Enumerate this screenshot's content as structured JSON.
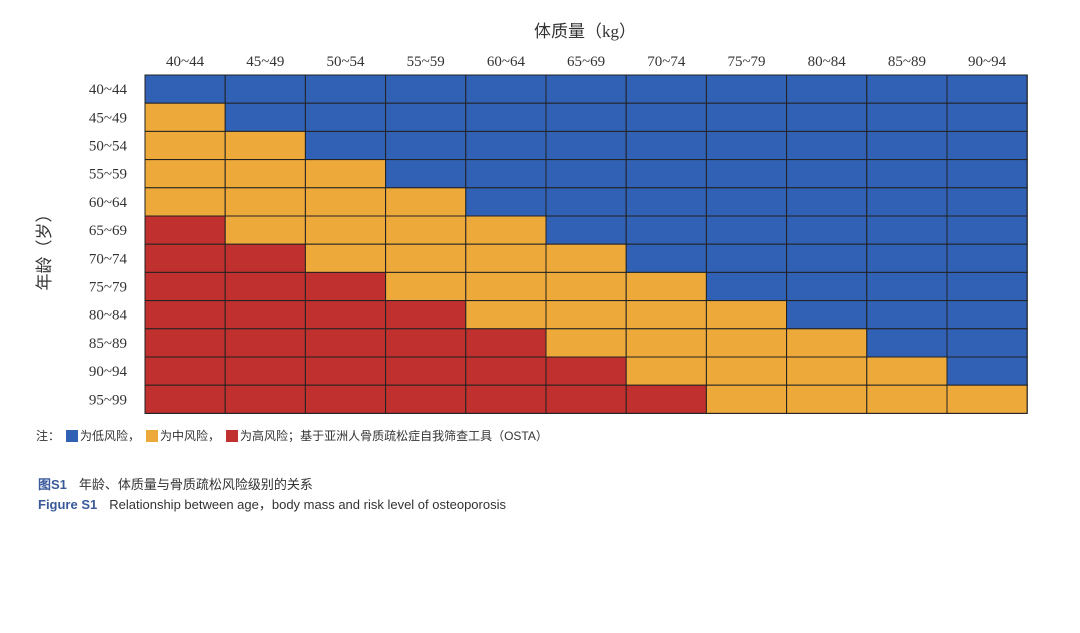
{
  "chart_data": {
    "type": "heatmap",
    "xlabel": "体质量（kg）",
    "ylabel": "年龄（岁）",
    "x_categories": [
      "40~44",
      "45~49",
      "50~54",
      "55~59",
      "60~64",
      "65~69",
      "70~74",
      "75~79",
      "80~84",
      "85~89",
      "90~94"
    ],
    "y_categories": [
      "40~44",
      "45~49",
      "50~54",
      "55~59",
      "60~64",
      "65~69",
      "70~74",
      "75~79",
      "80~84",
      "85~89",
      "90~94",
      "95~99"
    ],
    "levels": [
      "低风险",
      "中风险",
      "高风险"
    ],
    "level_colors": {
      "低风险": "#3061b5",
      "中风险": "#eea93b",
      "高风险": "#c0302e"
    },
    "grid_lines": true,
    "matrix": [
      [
        "低风险",
        "低风险",
        "低风险",
        "低风险",
        "低风险",
        "低风险",
        "低风险",
        "低风险",
        "低风险",
        "低风险",
        "低风险"
      ],
      [
        "中风险",
        "低风险",
        "低风险",
        "低风险",
        "低风险",
        "低风险",
        "低风险",
        "低风险",
        "低风险",
        "低风险",
        "低风险"
      ],
      [
        "中风险",
        "中风险",
        "低风险",
        "低风险",
        "低风险",
        "低风险",
        "低风险",
        "低风险",
        "低风险",
        "低风险",
        "低风险"
      ],
      [
        "中风险",
        "中风险",
        "中风险",
        "低风险",
        "低风险",
        "低风险",
        "低风险",
        "低风险",
        "低风险",
        "低风险",
        "低风险"
      ],
      [
        "中风险",
        "中风险",
        "中风险",
        "中风险",
        "低风险",
        "低风险",
        "低风险",
        "低风险",
        "低风险",
        "低风险",
        "低风险"
      ],
      [
        "高风险",
        "中风险",
        "中风险",
        "中风险",
        "中风险",
        "低风险",
        "低风险",
        "低风险",
        "低风险",
        "低风险",
        "低风险"
      ],
      [
        "高风险",
        "高风险",
        "中风险",
        "中风险",
        "中风险",
        "中风险",
        "低风险",
        "低风险",
        "低风险",
        "低风险",
        "低风险"
      ],
      [
        "高风险",
        "高风险",
        "高风险",
        "中风险",
        "中风险",
        "中风险",
        "中风险",
        "低风险",
        "低风险",
        "低风险",
        "低风险"
      ],
      [
        "高风险",
        "高风险",
        "高风险",
        "高风险",
        "中风险",
        "中风险",
        "中风险",
        "中风险",
        "低风险",
        "低风险",
        "低风险"
      ],
      [
        "高风险",
        "高风险",
        "高风险",
        "高风险",
        "高风险",
        "中风险",
        "中风险",
        "中风险",
        "中风险",
        "低风险",
        "低风险"
      ],
      [
        "高风险",
        "高风险",
        "高风险",
        "高风险",
        "高风险",
        "高风险",
        "中风险",
        "中风险",
        "中风险",
        "中风险",
        "低风险"
      ],
      [
        "高风险",
        "高风险",
        "高风险",
        "高风险",
        "高风险",
        "高风险",
        "高风险",
        "中风险",
        "中风险",
        "中风险",
        "中风险"
      ]
    ]
  },
  "note": {
    "prefix": "注：",
    "items": [
      {
        "label": "为低风险，",
        "color": "#3061b5"
      },
      {
        "label": "为中风险，",
        "color": "#eea93b"
      },
      {
        "label": "为高风险；",
        "color": "#c0302e"
      }
    ],
    "suffix": "基于亚洲人骨质疏松症自我筛查工具（OSTA）"
  },
  "caption": {
    "cn_label": "图S1",
    "cn_text": "年龄、体质量与骨质疏松风险级别的关系",
    "en_label": "Figure S1",
    "en_text": "Relationship between age，body mass and risk level of osteoporosis"
  }
}
